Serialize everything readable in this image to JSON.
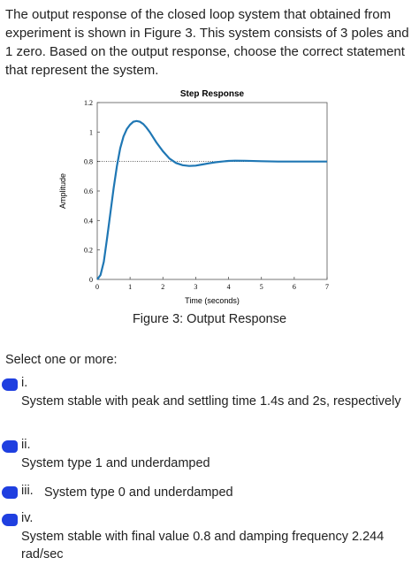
{
  "question": "The output response of the closed loop system that obtained from experiment is shown in Figure 3. This system consists of 3 poles and 1 zero. Based on the output response, choose the correct statement that represent the system.",
  "figure_caption": "Figure 3: Output Response",
  "select_label": "Select one or more:",
  "colors": {
    "curve": "#1f77b4",
    "marker": "#1f3fe0",
    "final_line": "#000000"
  },
  "options": [
    {
      "numeral": "i.",
      "text": "System stable with peak and settling time 1.4s and 2s, respectively"
    },
    {
      "numeral": "ii.",
      "text": "System type 1 and underdamped"
    },
    {
      "numeral": "iii.",
      "text": "System type 0 and underdamped"
    },
    {
      "numeral": "iv.",
      "text": "System stable with final value 0.8 and damping frequency 2.244 rad/sec"
    }
  ],
  "chart_data": {
    "type": "line",
    "title": "Step Response",
    "xlabel": "Time (seconds)",
    "ylabel": "Amplitude",
    "xlim": [
      0,
      7
    ],
    "ylim": [
      0,
      1.2
    ],
    "xticks": [
      0,
      1,
      2,
      3,
      4,
      5,
      6,
      7
    ],
    "yticks": [
      0,
      0.2,
      0.4,
      0.6,
      0.8,
      1,
      1.2
    ],
    "ytick_labels": [
      "0",
      "0.2",
      "0.4",
      "0.6",
      "0.8",
      "1",
      "1.2"
    ],
    "grid": false,
    "final_value": 0.8,
    "series": [
      {
        "x": [
          0,
          0.1,
          0.2,
          0.3,
          0.4,
          0.5,
          0.6,
          0.7,
          0.8,
          0.9,
          1.0,
          1.1,
          1.2,
          1.3,
          1.4,
          1.5,
          1.6,
          1.8,
          2.0,
          2.2,
          2.4,
          2.6,
          2.8,
          3.0,
          3.2,
          3.4,
          3.6,
          3.8,
          4.0,
          4.2,
          4.5,
          5.0,
          5.5,
          6.0,
          6.5,
          7.0
        ],
        "y": [
          0,
          0.03,
          0.12,
          0.28,
          0.45,
          0.62,
          0.77,
          0.89,
          0.97,
          1.02,
          1.05,
          1.07,
          1.075,
          1.07,
          1.055,
          1.03,
          1.0,
          0.93,
          0.87,
          0.82,
          0.79,
          0.775,
          0.77,
          0.772,
          0.78,
          0.788,
          0.795,
          0.8,
          0.804,
          0.806,
          0.805,
          0.802,
          0.8,
          0.8,
          0.8,
          0.8
        ]
      }
    ]
  }
}
